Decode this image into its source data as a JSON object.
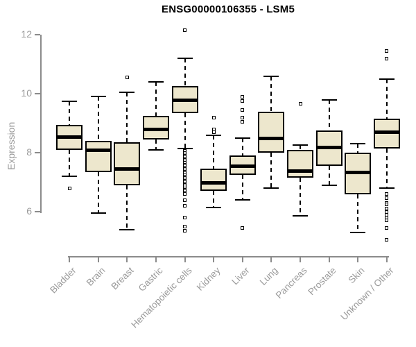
{
  "chart_data": {
    "type": "boxplot",
    "title": "ENSG00000106355 - LSM5",
    "ylabel": "Expression",
    "xlabel": "",
    "yticks": [
      6,
      8,
      10,
      12
    ],
    "ylim": [
      4.8,
      12.4
    ],
    "grid": false,
    "legend": null,
    "categories": [
      "Bladder",
      "Brain",
      "Breast",
      "Gastric",
      "Hematopoietic cells",
      "Kidney",
      "Liver",
      "Lung",
      "Pancreas",
      "Prostate",
      "Skin",
      "Unknown / Other"
    ],
    "series": [
      {
        "name": "Bladder",
        "whisker_low": 7.2,
        "q1": 8.1,
        "median": 8.55,
        "q3": 8.95,
        "whisker_high": 9.75,
        "outliers": [
          6.8
        ]
      },
      {
        "name": "Brain",
        "whisker_low": 5.95,
        "q1": 7.35,
        "median": 8.1,
        "q3": 8.4,
        "whisker_high": 9.9,
        "outliers": []
      },
      {
        "name": "Breast",
        "whisker_low": 5.4,
        "q1": 6.9,
        "median": 7.45,
        "q3": 8.35,
        "whisker_high": 10.05,
        "outliers": [
          10.55
        ]
      },
      {
        "name": "Gastric",
        "whisker_low": 8.1,
        "q1": 8.45,
        "median": 8.8,
        "q3": 9.25,
        "whisker_high": 10.4,
        "outliers": []
      },
      {
        "name": "Hematopoietic cells",
        "whisker_low": 8.15,
        "q1": 9.35,
        "median": 9.8,
        "q3": 10.25,
        "whisker_high": 11.2,
        "outliers": [
          12.15,
          8.05,
          8.0,
          7.95,
          7.9,
          7.85,
          7.8,
          7.75,
          7.7,
          7.65,
          7.6,
          7.55,
          7.5,
          7.45,
          7.4,
          7.35,
          7.3,
          7.25,
          7.2,
          7.15,
          7.1,
          7.05,
          7.0,
          6.95,
          6.9,
          6.85,
          6.8,
          6.75,
          6.7,
          6.65,
          6.6,
          6.4,
          6.2,
          5.8,
          5.5,
          5.35
        ]
      },
      {
        "name": "Kidney",
        "whisker_low": 6.15,
        "q1": 6.7,
        "median": 7.0,
        "q3": 7.45,
        "whisker_high": 8.6,
        "outliers": [
          9.2,
          8.8,
          8.7
        ]
      },
      {
        "name": "Liver",
        "whisker_low": 6.4,
        "q1": 7.25,
        "median": 7.55,
        "q3": 7.9,
        "whisker_high": 8.5,
        "outliers": [
          9.9,
          9.75,
          9.45,
          9.2,
          9.05,
          5.45
        ]
      },
      {
        "name": "Lung",
        "whisker_low": 6.8,
        "q1": 8.0,
        "median": 8.5,
        "q3": 9.4,
        "whisker_high": 10.6,
        "outliers": []
      },
      {
        "name": "Pancreas",
        "whisker_low": 5.85,
        "q1": 7.15,
        "median": 7.4,
        "q3": 8.1,
        "whisker_high": 8.25,
        "outliers": [
          9.65
        ]
      },
      {
        "name": "Prostate",
        "whisker_low": 6.9,
        "q1": 7.55,
        "median": 8.2,
        "q3": 8.75,
        "whisker_high": 9.8,
        "outliers": []
      },
      {
        "name": "Skin",
        "whisker_low": 5.3,
        "q1": 6.6,
        "median": 7.35,
        "q3": 8.0,
        "whisker_high": 8.3,
        "outliers": []
      },
      {
        "name": "Unknown / Other",
        "whisker_low": 6.8,
        "q1": 8.15,
        "median": 8.7,
        "q3": 9.15,
        "whisker_high": 10.5,
        "outliers": [
          11.45,
          11.2,
          6.6,
          6.45,
          6.3,
          6.25,
          6.1,
          6.0,
          5.9,
          5.8,
          5.7,
          5.45,
          5.05
        ]
      }
    ],
    "colors": {
      "box_fill": "#EDE7CD",
      "box_border": "#000000",
      "median": "#000000",
      "whisker": "#000000",
      "outlier_fill": "#ffffff",
      "outlier_border": "#000000",
      "axis": "#8B8B8B",
      "tick_label": "#9A9A9A",
      "title": "#000000",
      "background": "#FFFFFF"
    }
  }
}
